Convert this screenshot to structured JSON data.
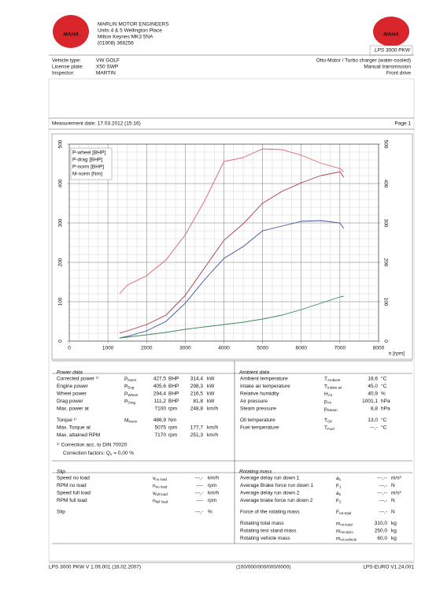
{
  "header": {
    "logo": "MAHA",
    "company": [
      "MARLIN MOTOR ENGINEERS",
      "Units 4 & 5 Wellington Place",
      "Milton Keynes MK3 5NA",
      "(01908) 366256"
    ],
    "right_logo": "MAHA",
    "product": "LPS 3000 PKW"
  },
  "vehicle": {
    "fields": [
      {
        "label": "Vehicle type:",
        "value": "VW GOLF"
      },
      {
        "label": "License plate:",
        "value": "X50 SWP"
      },
      {
        "label": "Inspector:",
        "value": "MARTIN"
      }
    ],
    "specs": [
      "Otto-Motor / Turbo charger (water-cooled)",
      "Manual transmission",
      "Front drive"
    ]
  },
  "measurement": {
    "date": "Measurement date: 17.03.2012 (15:16)",
    "page": "Page 1"
  },
  "chart_data": {
    "type": "line",
    "x_label": "n [rpm]",
    "x": [
      1300,
      1500,
      2000,
      2500,
      3000,
      3500,
      4000,
      4500,
      5000,
      5500,
      6000,
      6500,
      7000,
      7100
    ],
    "series": [
      {
        "name": "P-wheel [BHP]",
        "color": "#3a4f9a",
        "values": [
          8,
          12,
          26,
          50,
          96,
          156,
          210,
          240,
          280,
          292,
          304,
          306,
          300,
          286
        ]
      },
      {
        "name": "P-drag [BHP]",
        "color": "#3a8a5a",
        "values": [
          8,
          10,
          16,
          22,
          30,
          36,
          42,
          48,
          56,
          66,
          80,
          96,
          112,
          114
        ]
      },
      {
        "name": "P-norm [BHP]",
        "color": "#a83848",
        "values": [
          20,
          26,
          42,
          66,
          116,
          186,
          256,
          298,
          350,
          380,
          402,
          420,
          430,
          416
        ]
      },
      {
        "name": "M-norm [Nm]",
        "color": "#e0606e",
        "values": [
          120,
          142,
          166,
          206,
          270,
          356,
          456,
          466,
          488,
          486,
          472,
          452,
          438,
          430
        ]
      }
    ],
    "xlim": [
      0,
      8000
    ],
    "xticks": [
      0,
      1000,
      2000,
      3000,
      4000,
      5000,
      6000,
      7000,
      8000
    ],
    "ylim": [
      0,
      500
    ],
    "yticks": [
      0,
      100,
      200,
      300,
      400,
      500
    ],
    "y2lim": [
      0,
      500
    ],
    "y2ticks": [
      0,
      100,
      200,
      300,
      400,
      500
    ],
    "y2color": "#e07070",
    "grid": true,
    "legend": "upper left"
  },
  "power": {
    "title": "Power data",
    "groups": [
      [
        {
          "label": "Corrected power ¹⁾",
          "sym": "P",
          "sub": "Norm",
          "v1": "427,5",
          "u1": "BHP",
          "v2": "314,4",
          "u2": "kW",
          "color": "#d0303a"
        },
        {
          "label": "Engine power",
          "sym": "P",
          "sub": "Eng",
          "v1": "405,6",
          "u1": "BHP",
          "v2": "298,3",
          "u2": "kW",
          "color": "#d0303a"
        },
        {
          "label": "Wheel power",
          "sym": "P",
          "sub": "Wheel",
          "v1": "294,4",
          "u1": "BHP",
          "v2": "216,5",
          "u2": "kW",
          "color": "#3050a0"
        },
        {
          "label": "Drag power",
          "sym": "P",
          "sub": "Drag",
          "v1": "111,2",
          "u1": "BHP",
          "v2": "81,8",
          "u2": "kW",
          "color": "#2e8a4a"
        },
        {
          "label": "Max. power at",
          "v1": "7100",
          "u1": "rpm",
          "v2": "248,8",
          "u2": "km/h"
        }
      ],
      [
        {
          "label": "Torque ¹⁾",
          "sym": "M",
          "sub": "Norm",
          "v1": "486,9",
          "u1": "Nm",
          "color": "#d0303a"
        },
        {
          "label": "Max. Torque at",
          "v1": "5075",
          "u1": "rpm",
          "v2": "177,7",
          "u2": "km/h"
        },
        {
          "label": "Max. attained RPM",
          "v1": "7170",
          "u1": "rpm",
          "v2": "251,3",
          "u2": "km/h"
        }
      ]
    ],
    "note": "¹⁾ Correction acc. to DIN 70020",
    "factor": {
      "text": "Correction factors: Q",
      "sub": "v",
      "value": "= 0,00 %"
    },
    "note_color": "#d0303a"
  },
  "ambient": {
    "title": "Ambient data",
    "groups": [
      [
        {
          "label": "Ambient temperature",
          "sym": "T",
          "sub": "Ambient",
          "v1": "18,6",
          "u1": "°C"
        },
        {
          "label": "Intake air temperature",
          "sym": "T",
          "sub": "Intake air",
          "v1": "45,0",
          "u1": "°C"
        },
        {
          "label": "Relative humidity",
          "sym": "H",
          "sub": "Air",
          "v1": "40,9",
          "u1": "%"
        },
        {
          "label": "Air pressure",
          "sym": "p",
          "sub": "Air",
          "v1": "1001,1",
          "u1": "hPa"
        },
        {
          "label": "Steam pressure",
          "sym": "p",
          "sub": "Steam",
          "v1": "8,8",
          "u1": "hPa"
        }
      ],
      [
        {
          "label": "Oil temperature",
          "sym": "T",
          "sub": "Oil",
          "v1": "13,0",
          "u1": "°C"
        },
        {
          "label": "Fuel temperature",
          "sym": "T",
          "sub": "Fuel",
          "v1": "---,-",
          "u1": "°C"
        }
      ]
    ]
  },
  "slip": {
    "title": "Slip",
    "groups": [
      [
        {
          "label": "Speed no load",
          "sym": "v",
          "sub": "no load",
          "v1": "---,-",
          "u1": "km/h"
        },
        {
          "label": "RPM no load",
          "sym": "n",
          "sub": "no load",
          "v1": "----",
          "u1": "rpm"
        },
        {
          "label": "Speed full load",
          "sym": "v",
          "sub": "full load",
          "v1": "---,-",
          "u1": "km/h"
        },
        {
          "label": "RPM full load",
          "sym": "n",
          "sub": "full load",
          "v1": "----",
          "u1": "rpm"
        }
      ],
      [
        {
          "label": "Slip",
          "v1": "---,-",
          "u1": "%"
        }
      ]
    ]
  },
  "rotating": {
    "title": "Rotating mass",
    "groups": [
      [
        {
          "label": "Average delay run down 1",
          "sym": "a",
          "sub": "1",
          "v1": "---,--",
          "u1": "m/s²"
        },
        {
          "label": "Average Brake force run down 1",
          "sym": "F",
          "sub": "1",
          "v1": "---,-",
          "u1": "N"
        },
        {
          "label": "Average delay run down 2",
          "sym": "a",
          "sub": "2",
          "v1": "---,--",
          "u1": "m/s²"
        },
        {
          "label": "Average brake force run down 2",
          "sym": "F",
          "sub": "2",
          "v1": "---,-",
          "u1": "N"
        }
      ],
      [
        {
          "label": "Force of the rotating mass",
          "sym": "F",
          "sub": "rot-total",
          "v1": "---,-",
          "u1": "N"
        }
      ],
      [
        {
          "label": "Rotating total mass",
          "sym": "m",
          "sub": "rot-total",
          "v1": "310,0",
          "u1": "kg"
        },
        {
          "label": "Rotating test stand mass",
          "sym": "m",
          "sub": "rot-dyno",
          "v1": "250,0",
          "u1": "kg"
        },
        {
          "label": "Rotating vehicle mass",
          "sym": "m",
          "sub": "rot-vehicle",
          "v1": "60,0",
          "u1": "kg"
        }
      ]
    ]
  },
  "footer": [
    "LPS 3000 PKW V 1.09.001 (16.02.2007)",
    "(100/000/000/000/0000)",
    "LPS-EURO V1.24.001"
  ]
}
